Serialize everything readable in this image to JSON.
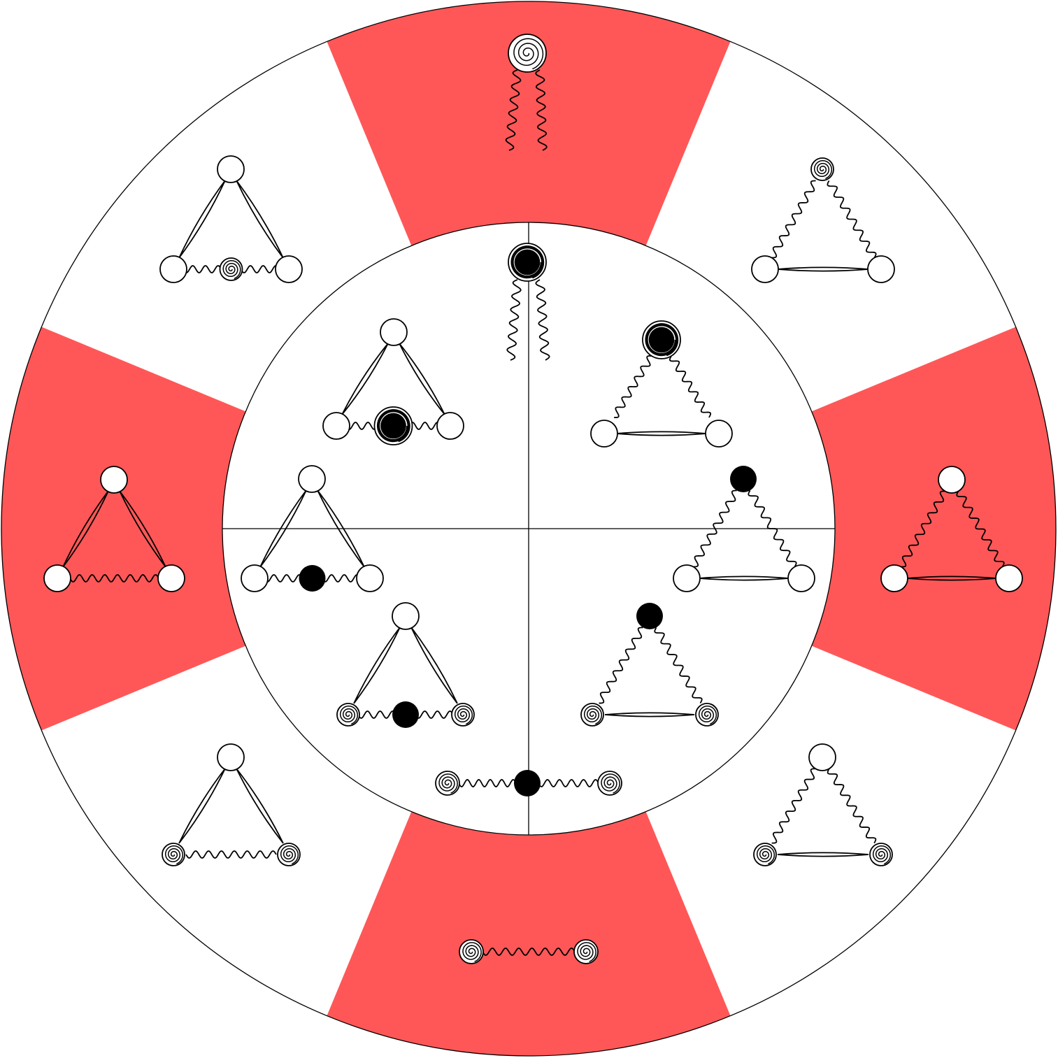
{
  "palette": {
    "highlight": "#ff5757",
    "line": "#000000",
    "background": "#ffffff"
  },
  "outer_ring": {
    "sectors": [
      {
        "position": "top",
        "highlighted": true,
        "diagram": "two-line-with-spiral-vertex"
      },
      {
        "position": "top-right",
        "highlighted": false,
        "diagram": "wavy-triangle-spiral-top"
      },
      {
        "position": "right",
        "highlighted": true,
        "diagram": "wavy-triangle-plain"
      },
      {
        "position": "bottom-right",
        "highlighted": false,
        "diagram": "wavy-triangle-spiral-base"
      },
      {
        "position": "bottom",
        "highlighted": true,
        "diagram": "spiral-wavy-spiral"
      },
      {
        "position": "bottom-left",
        "highlighted": false,
        "diagram": "double-triangle-spiral-base"
      },
      {
        "position": "left",
        "highlighted": true,
        "diagram": "double-triangle-plain"
      },
      {
        "position": "top-left",
        "highlighted": false,
        "diagram": "double-triangle-spiral-middle"
      }
    ]
  },
  "inner_disk": {
    "quadrants": 4,
    "diagrams": [
      "two-line-with-black-spiral-vertex",
      "wavy-triangle-black-spiral-top",
      "wavy-triangle-black-top",
      "wavy-triangle-black-top-spiral-base",
      "spiral-wavy-black-wavy-spiral",
      "double-triangle-spiral-base-black-middle",
      "double-triangle-black-middle",
      "double-triangle-black-spiral-middle"
    ]
  }
}
